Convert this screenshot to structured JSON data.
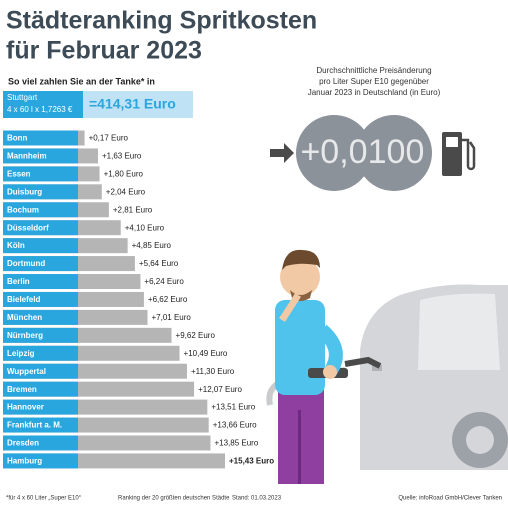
{
  "header": {
    "title_line1": "Städteranking Spritkosten",
    "title_line2": "für Februar 2023",
    "subtitle": "So viel zahlen Sie an der Tanke* in"
  },
  "stuttgart": {
    "city": "Stuttgart",
    "formula": "4 x 60 l x 1,7263 €",
    "total": "=414,31 Euro"
  },
  "chart_data": {
    "type": "bar",
    "orientation": "horizontal",
    "categories": [
      "Bonn",
      "Mannheim",
      "Essen",
      "Duisburg",
      "Bochum",
      "Düsseldorf",
      "Köln",
      "Dortmund",
      "Berlin",
      "Bielefeld",
      "München",
      "Nürnberg",
      "Leipzig",
      "Wuppertal",
      "Bremen",
      "Hannover",
      "Frankfurt a. M.",
      "Dresden",
      "Hamburg"
    ],
    "values": [
      0.17,
      1.63,
      1.8,
      2.04,
      2.81,
      4.1,
      4.85,
      5.64,
      6.24,
      6.62,
      7.01,
      9.62,
      10.49,
      11.3,
      12.07,
      13.51,
      13.66,
      13.85,
      15.43
    ],
    "value_labels": [
      "+0,17 Euro",
      "+1,63 Euro",
      "+1,80 Euro",
      "+2,04 Euro",
      "+2,81 Euro",
      "+4,10 Euro",
      "+4,85 Euro",
      "+5,64 Euro",
      "+6,24 Euro",
      "+6,62 Euro",
      "+7,01 Euro",
      "+9,62 Euro",
      "+10,49 Euro",
      "+11,30 Euro",
      "+12,07 Euro",
      "+13,51 Euro",
      "+13,66 Euro",
      "+13,85 Euro",
      "+15,43 Euro"
    ],
    "color": "#b5b5b5",
    "label_color": "#2aa6df"
  },
  "price_change": {
    "description": [
      "Durchschnittliche Preisänderung",
      "pro Liter Super E10 gegenüber",
      "Januar 2023 in Deutschland (in Euro)"
    ],
    "display": [
      "+0,0",
      "100"
    ]
  },
  "footer": {
    "note": "*für 4 x 60 Liter „Super E10“",
    "ranking": "Ranking der 20 größten deutschen Städte",
    "date": "Stand: 01.03.2023",
    "source": "Quelle: infoRoad GmbH/Clever Tanken"
  }
}
